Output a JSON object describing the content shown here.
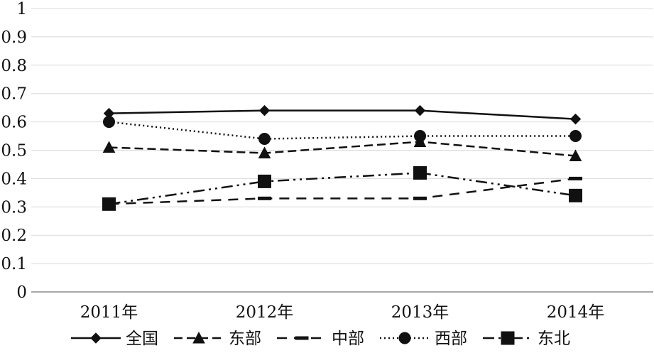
{
  "chart_data": {
    "type": "line",
    "categories": [
      "2011年",
      "2012年",
      "2013年",
      "2014年"
    ],
    "ylim": [
      0,
      1
    ],
    "yticks": [
      "0",
      "0.1",
      "0.2",
      "0.3",
      "0.4",
      "0.5",
      "0.6",
      "0.7",
      "0.8",
      "0.9",
      "1"
    ],
    "grid": true,
    "legend_position": "bottom",
    "series": [
      {
        "name": "全国",
        "values": [
          0.63,
          0.64,
          0.64,
          0.61
        ],
        "marker": "diamond",
        "dash": "solid",
        "color": "#111111"
      },
      {
        "name": "东部",
        "values": [
          0.51,
          0.49,
          0.53,
          0.48
        ],
        "marker": "triangle",
        "dash": "dash",
        "color": "#111111"
      },
      {
        "name": "中部",
        "values": [
          0.31,
          0.33,
          0.33,
          0.4
        ],
        "marker": "dash",
        "dash": "longdash",
        "color": "#111111"
      },
      {
        "name": "西部",
        "values": [
          0.6,
          0.54,
          0.55,
          0.55
        ],
        "marker": "circle",
        "dash": "dot",
        "color": "#111111"
      },
      {
        "name": "东北",
        "values": [
          0.31,
          0.39,
          0.42,
          0.34
        ],
        "marker": "square",
        "dash": "dashdotdot",
        "color": "#111111"
      }
    ]
  }
}
